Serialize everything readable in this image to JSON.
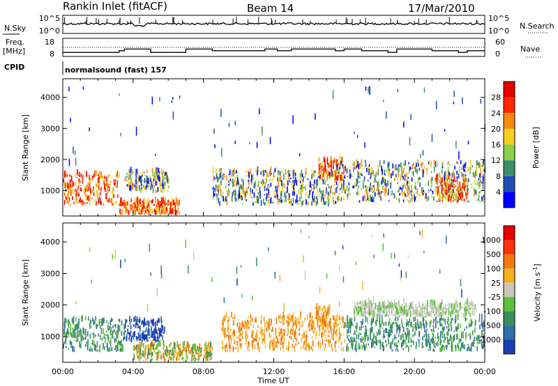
{
  "header": {
    "station": "Rankin Inlet (fitACF)",
    "beam": "Beam 14",
    "date": "17/Mar/2010"
  },
  "noise_panel": {
    "left_label": "N.Sky",
    "right_label": "N.Search",
    "left_ticks": [
      "10^5",
      "10^0"
    ],
    "right_ticks": [
      "10^5",
      "10^0"
    ]
  },
  "freq_panel": {
    "left_label_1": "Freq.",
    "left_label_2": "[MHz]",
    "right_label": "Nave",
    "left_ticks": [
      "18",
      "8"
    ],
    "right_ticks": [
      "60",
      "0"
    ]
  },
  "cpid": {
    "label": "CPID",
    "text": "normalsound (fast) 157"
  },
  "chart_data": [
    {
      "type": "heatmap",
      "title": "",
      "xlabel": "Time UT",
      "ylabel": "Slant Range [km]",
      "xlim": [
        "00:00",
        "00:00"
      ],
      "ylim": [
        180,
        4600
      ],
      "x_tick_labels": [
        "00:00",
        "04:00",
        "08:00",
        "12:00",
        "16:00",
        "20:00",
        "00:00"
      ],
      "y_ticks": [
        1000,
        2000,
        3000,
        4000
      ],
      "colorbar": {
        "label": "Power [dB]",
        "ticks": [
          4,
          8,
          12,
          16,
          20,
          24,
          28
        ],
        "colors": [
          "#0000ff",
          "#1f4fb4",
          "#3b8f6b",
          "#8ccf4a",
          "#f5d020",
          "#f58a10",
          "#ff2a00",
          "#e60000"
        ]
      },
      "echo_regions": [
        {
          "t_start": 0.0,
          "t_end": 3.2,
          "r_min": 500,
          "r_max": 1700,
          "level": "high"
        },
        {
          "t_start": 3.2,
          "t_end": 6.6,
          "r_min": 200,
          "r_max": 700,
          "level": "high"
        },
        {
          "t_start": 3.5,
          "t_end": 6.0,
          "r_min": 900,
          "r_max": 1700,
          "level": "medium"
        },
        {
          "t_start": 8.5,
          "t_end": 15.5,
          "r_min": 500,
          "r_max": 1800,
          "level": "medium"
        },
        {
          "t_start": 14.5,
          "t_end": 16.0,
          "r_min": 1300,
          "r_max": 2100,
          "level": "high"
        },
        {
          "t_start": 15.5,
          "t_end": 24.0,
          "r_min": 600,
          "r_max": 2100,
          "level": "medium"
        },
        {
          "t_start": 21.2,
          "t_end": 23.0,
          "r_min": 600,
          "r_max": 1500,
          "level": "high"
        }
      ]
    },
    {
      "type": "heatmap",
      "title": "",
      "xlabel": "Time UT",
      "ylabel": "Slant Range [km]",
      "xlim": [
        "00:00",
        "00:00"
      ],
      "ylim": [
        180,
        4600
      ],
      "x_tick_labels": [
        "00:00",
        "04:00",
        "08:00",
        "12:00",
        "16:00",
        "20:00",
        "00:00"
      ],
      "y_ticks": [
        1000,
        2000,
        3000,
        4000
      ],
      "colorbar": {
        "label": "Velocity [m s^-1]",
        "ticks": [
          1000,
          500,
          100,
          25,
          -25,
          -100,
          -500,
          -1000
        ],
        "colors": [
          "#1a3fb0",
          "#2f6fa8",
          "#3c8c60",
          "#5cbf3a",
          "#c8c8c0",
          "#f5b020",
          "#f07a10",
          "#ff3010",
          "#e60000"
        ]
      },
      "echo_regions": [
        {
          "t_start": 0.0,
          "t_end": 3.5,
          "r_min": 500,
          "r_max": 1700,
          "level": "green"
        },
        {
          "t_start": 3.5,
          "t_end": 5.8,
          "r_min": 800,
          "r_max": 1600,
          "level": "blue"
        },
        {
          "t_start": 4.0,
          "t_end": 8.5,
          "r_min": 200,
          "r_max": 800,
          "level": "mixed"
        },
        {
          "t_start": 9.0,
          "t_end": 16.0,
          "r_min": 500,
          "r_max": 1800,
          "level": "orange"
        },
        {
          "t_start": 14.3,
          "t_end": 15.2,
          "r_min": 1300,
          "r_max": 2000,
          "level": "orange"
        },
        {
          "t_start": 16.0,
          "t_end": 24.0,
          "r_min": 500,
          "r_max": 1700,
          "level": "green"
        },
        {
          "t_start": 16.5,
          "t_end": 23.5,
          "r_min": 1600,
          "r_max": 2100,
          "level": "grey"
        }
      ]
    }
  ]
}
